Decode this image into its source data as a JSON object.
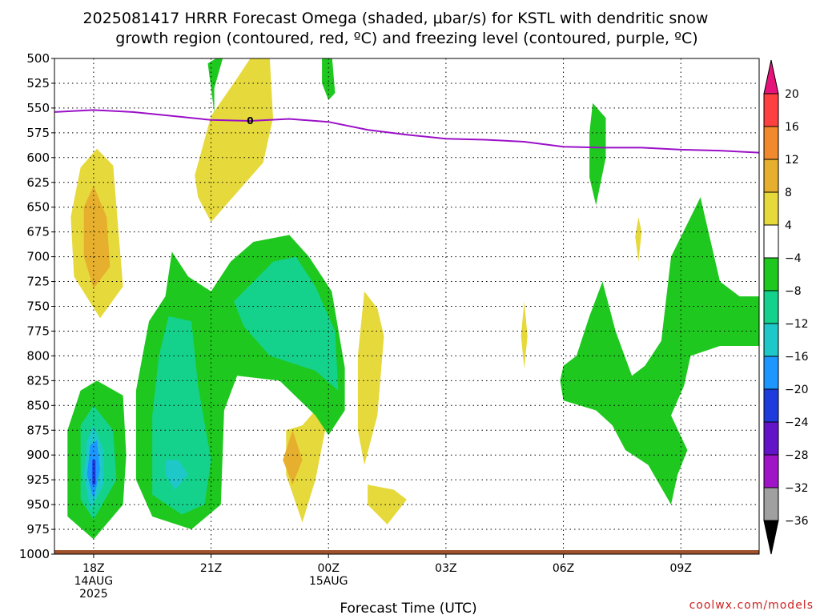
{
  "title_line1": "2025081417 HRRR Forecast Omega (shaded, μbar/s) for KSTL with dendritic snow",
  "title_line2": "growth region (contoured, red, ºC) and freezing level (contoured, purple, ºC)",
  "watermark": "coolwx.com/models",
  "chart_data": {
    "type": "heatmap",
    "title": "2025081417 HRRR Forecast Omega (shaded, μbar/s) for KSTL with dendritic snow growth region (contoured, red, ºC) and freezing level (contoured, purple, ºC)",
    "xlabel": "Forecast Time (UTC)",
    "ylabel": "",
    "y_axis": {
      "inverted": true,
      "ylim": [
        1000,
        500
      ],
      "ticks": [
        500,
        525,
        550,
        575,
        600,
        625,
        650,
        675,
        700,
        725,
        750,
        775,
        800,
        825,
        850,
        875,
        900,
        925,
        950,
        975,
        1000
      ]
    },
    "x_axis": {
      "xlim": [
        "2025-08-14 17Z",
        "2025-08-15 11Z"
      ],
      "ticks": [
        {
          "t": "2025-08-14 18Z",
          "lines": [
            "18Z",
            "14AUG",
            "2025"
          ]
        },
        {
          "t": "2025-08-14 21Z",
          "lines": [
            "21Z"
          ]
        },
        {
          "t": "2025-08-15 00Z",
          "lines": [
            "00Z",
            "15AUG"
          ]
        },
        {
          "t": "2025-08-15 03Z",
          "lines": [
            "03Z"
          ]
        },
        {
          "t": "2025-08-15 06Z",
          "lines": [
            "06Z"
          ]
        },
        {
          "t": "2025-08-15 09Z",
          "lines": [
            "09Z"
          ]
        }
      ]
    },
    "grid": true,
    "colorbar": {
      "labels": [
        "20",
        "16",
        "12",
        "8",
        "4",
        "−4",
        "−8",
        "−12",
        "−16",
        "−20",
        "−24",
        "−28",
        "−32",
        "−36"
      ],
      "bands": [
        {
          "range": "16 to 20",
          "color": "#ff4040"
        },
        {
          "range": "12 to 16",
          "color": "#f08a2c"
        },
        {
          "range": "8 to 12",
          "color": "#e6b02e"
        },
        {
          "range": "4 to 8",
          "color": "#e6d93c"
        },
        {
          "range": "-4 to 4",
          "color": "#ffffff"
        },
        {
          "range": "-8 to -4",
          "color": "#1ec81e"
        },
        {
          "range": "-12 to -8",
          "color": "#14d28c"
        },
        {
          "range": "-16 to -12",
          "color": "#1ec8c8"
        },
        {
          "range": "-20 to -16",
          "color": "#1e96ff"
        },
        {
          "range": "-24 to -20",
          "color": "#1e3cdc"
        },
        {
          "range": "-28 to -24",
          "color": "#6414c8"
        },
        {
          "range": "-32 to -28",
          "color": "#a014c8"
        },
        {
          "range": "-36 to -32",
          "color": "#a0a0a0"
        }
      ],
      "top_cap_color": "#e6147a",
      "bottom_cap_color": "#000000"
    },
    "freezing_level": {
      "label": "0",
      "color": "#9b10c8",
      "points": [
        [
          "2025-08-14 17Z",
          554
        ],
        [
          "2025-08-14 18Z",
          552
        ],
        [
          "2025-08-14 19Z",
          554
        ],
        [
          "2025-08-14 20Z",
          558
        ],
        [
          "2025-08-14 21Z",
          562
        ],
        [
          "2025-08-14 22Z",
          563
        ],
        [
          "2025-08-14 23Z",
          561
        ],
        [
          "2025-08-15 00Z",
          564
        ],
        [
          "2025-08-15 01Z",
          572
        ],
        [
          "2025-08-15 02Z",
          577
        ],
        [
          "2025-08-15 03Z",
          581
        ],
        [
          "2025-08-15 04Z",
          582
        ],
        [
          "2025-08-15 05Z",
          584
        ],
        [
          "2025-08-15 06Z",
          589
        ],
        [
          "2025-08-15 07Z",
          590
        ],
        [
          "2025-08-15 08Z",
          590
        ],
        [
          "2025-08-15 09Z",
          592
        ],
        [
          "2025-08-15 10Z",
          593
        ],
        [
          "2025-08-15 11Z",
          595
        ]
      ]
    },
    "terrain_color": "#a0522d",
    "regions": [
      {
        "band": "4 to 8",
        "points": [
          [
            "2025-08-14 17:40Z",
            610
          ],
          [
            "2025-08-14 18:05Z",
            591
          ],
          [
            "2025-08-14 18:30Z",
            608
          ],
          [
            "2025-08-14 18:40Z",
            690
          ],
          [
            "2025-08-14 18:45Z",
            730
          ],
          [
            "2025-08-14 18:10Z",
            762
          ],
          [
            "2025-08-14 17:30Z",
            720
          ],
          [
            "2025-08-14 17:25Z",
            660
          ]
        ]
      },
      {
        "band": "8 to 12",
        "points": [
          [
            "2025-08-14 17:45Z",
            650
          ],
          [
            "2025-08-14 18:00Z",
            628
          ],
          [
            "2025-08-14 18:20Z",
            660
          ],
          [
            "2025-08-14 18:25Z",
            710
          ],
          [
            "2025-08-14 18:00Z",
            732
          ],
          [
            "2025-08-14 17:45Z",
            700
          ]
        ]
      },
      {
        "band": "4 to 8",
        "points": [
          [
            "2025-08-14 20:35Z",
            618
          ],
          [
            "2025-08-14 21:00Z",
            558
          ],
          [
            "2025-08-14 21:40Z",
            520
          ],
          [
            "2025-08-14 22:05Z",
            495
          ],
          [
            "2025-08-14 22:30Z",
            500
          ],
          [
            "2025-08-14 22:35Z",
            560
          ],
          [
            "2025-08-14 22:20Z",
            605
          ],
          [
            "2025-08-14 21:00Z",
            665
          ],
          [
            "2025-08-14 20:40Z",
            640
          ]
        ]
      },
      {
        "band": "4 to 8",
        "points": [
          [
            "2025-08-14 23:20Z",
            870
          ],
          [
            "2025-08-14 23:40Z",
            855
          ],
          [
            "2025-08-14 23:55Z",
            875
          ],
          [
            "2025-08-14 23:40Z",
            925
          ],
          [
            "2025-08-14 23:20Z",
            968
          ],
          [
            "2025-08-14 22:55Z",
            920
          ],
          [
            "2025-08-14 22:55Z",
            875
          ]
        ]
      },
      {
        "band": "8 to 12",
        "points": [
          [
            "2025-08-14 23:05Z",
            875
          ],
          [
            "2025-08-14 23:20Z",
            905
          ],
          [
            "2025-08-14 23:05Z",
            930
          ],
          [
            "2025-08-14 22:50Z",
            905
          ]
        ]
      },
      {
        "band": "4 to 8",
        "points": [
          [
            "2025-08-15 00:55Z",
            735
          ],
          [
            "2025-08-15 01:15Z",
            752
          ],
          [
            "2025-08-15 01:25Z",
            780
          ],
          [
            "2025-08-15 01:15Z",
            860
          ],
          [
            "2025-08-15 00:55Z",
            910
          ],
          [
            "2025-08-15 00:45Z",
            875
          ],
          [
            "2025-08-15 00:45Z",
            800
          ]
        ]
      },
      {
        "band": "4 to 8",
        "points": [
          [
            "2025-08-15 01:00Z",
            930
          ],
          [
            "2025-08-15 01:40Z",
            935
          ],
          [
            "2025-08-15 02:00Z",
            945
          ],
          [
            "2025-08-15 01:30Z",
            970
          ],
          [
            "2025-08-15 01:00Z",
            950
          ]
        ]
      },
      {
        "band": "-8 to -4",
        "points": [
          [
            "2025-08-14 17:20Z",
            875
          ],
          [
            "2025-08-14 17:40Z",
            835
          ],
          [
            "2025-08-14 18:05Z",
            825
          ],
          [
            "2025-08-14 18:45Z",
            840
          ],
          [
            "2025-08-14 18:50Z",
            900
          ],
          [
            "2025-08-14 18:45Z",
            950
          ],
          [
            "2025-08-14 18:00Z",
            985
          ],
          [
            "2025-08-14 17:20Z",
            962
          ]
        ]
      },
      {
        "band": "-12 to -8",
        "points": [
          [
            "2025-08-14 17:40Z",
            870
          ],
          [
            "2025-08-14 18:00Z",
            850
          ],
          [
            "2025-08-14 18:30Z",
            875
          ],
          [
            "2025-08-14 18:35Z",
            925
          ],
          [
            "2025-08-14 18:00Z",
            965
          ],
          [
            "2025-08-14 17:40Z",
            945
          ]
        ]
      },
      {
        "band": "-16 to -12",
        "points": [
          [
            "2025-08-14 17:50Z",
            885
          ],
          [
            "2025-08-14 18:00Z",
            870
          ],
          [
            "2025-08-14 18:15Z",
            895
          ],
          [
            "2025-08-14 18:15Z",
            930
          ],
          [
            "2025-08-14 17:55Z",
            955
          ],
          [
            "2025-08-14 17:45Z",
            920
          ]
        ]
      },
      {
        "band": "-20 to -16",
        "points": [
          [
            "2025-08-14 17:55Z",
            890
          ],
          [
            "2025-08-14 18:05Z",
            885
          ],
          [
            "2025-08-14 18:10Z",
            915
          ],
          [
            "2025-08-14 18:00Z",
            945
          ],
          [
            "2025-08-14 17:50Z",
            920
          ]
        ]
      },
      {
        "band": "-24 to -20",
        "points": [
          [
            "2025-08-14 17:58Z",
            905
          ],
          [
            "2025-08-14 18:03Z",
            905
          ],
          [
            "2025-08-14 18:03Z",
            930
          ],
          [
            "2025-08-14 17:58Z",
            930
          ]
        ]
      },
      {
        "band": "-8 to -4",
        "points": [
          [
            "2025-08-14 19:05Z",
            835
          ],
          [
            "2025-08-14 19:25Z",
            765
          ],
          [
            "2025-08-14 19:50Z",
            740
          ],
          [
            "2025-08-14 20:00Z",
            695
          ],
          [
            "2025-08-14 20:25Z",
            720
          ],
          [
            "2025-08-14 21:00Z",
            735
          ],
          [
            "2025-08-14 21:30Z",
            705
          ],
          [
            "2025-08-14 22:05Z",
            685
          ],
          [
            "2025-08-14 23:00Z",
            678
          ],
          [
            "2025-08-14 23:30Z",
            700
          ],
          [
            "2025-08-15 00:05Z",
            735
          ],
          [
            "2025-08-15 00:25Z",
            812
          ],
          [
            "2025-08-15 00:25Z",
            855
          ],
          [
            "2025-08-15 00:00Z",
            880
          ],
          [
            "2025-08-14 23:40Z",
            860
          ],
          [
            "2025-08-14 22:45Z",
            825
          ],
          [
            "2025-08-14 21:40Z",
            820
          ],
          [
            "2025-08-14 21:20Z",
            855
          ],
          [
            "2025-08-14 21:15Z",
            950
          ],
          [
            "2025-08-14 20:30Z",
            975
          ],
          [
            "2025-08-14 19:30Z",
            962
          ],
          [
            "2025-08-14 19:05Z",
            925
          ]
        ]
      },
      {
        "band": "-12 to -8",
        "points": [
          [
            "2025-08-14 19:40Z",
            800
          ],
          [
            "2025-08-14 19:55Z",
            760
          ],
          [
            "2025-08-14 20:30Z",
            765
          ],
          [
            "2025-08-14 20:40Z",
            830
          ],
          [
            "2025-08-14 21:00Z",
            905
          ],
          [
            "2025-08-14 20:50Z",
            950
          ],
          [
            "2025-08-14 20:15Z",
            960
          ],
          [
            "2025-08-14 19:30Z",
            940
          ],
          [
            "2025-08-14 19:30Z",
            860
          ]
        ]
      },
      {
        "band": "-16 to -12",
        "points": [
          [
            "2025-08-14 19:50Z",
            905
          ],
          [
            "2025-08-14 20:10Z",
            905
          ],
          [
            "2025-08-14 20:25Z",
            920
          ],
          [
            "2025-08-14 20:05Z",
            935
          ],
          [
            "2025-08-14 19:50Z",
            920
          ]
        ]
      },
      {
        "band": "-12 to -8",
        "points": [
          [
            "2025-08-14 21:35Z",
            745
          ],
          [
            "2025-08-14 22:05Z",
            725
          ],
          [
            "2025-08-14 22:35Z",
            705
          ],
          [
            "2025-08-14 23:10Z",
            700
          ],
          [
            "2025-08-14 23:40Z",
            730
          ],
          [
            "2025-08-15 00:10Z",
            775
          ],
          [
            "2025-08-15 00:15Z",
            835
          ],
          [
            "2025-08-14 23:40Z",
            815
          ],
          [
            "2025-08-14 22:30Z",
            800
          ],
          [
            "2025-08-14 21:50Z",
            770
          ]
        ]
      },
      {
        "band": "-8 to -4",
        "points": [
          [
            "2025-08-14 20:55Z",
            505
          ],
          [
            "2025-08-14 21:20Z",
            495
          ],
          [
            "2025-08-14 21:05Z",
            530
          ],
          [
            "2025-08-14 21:05Z",
            555
          ]
        ]
      },
      {
        "band": "-8 to -4",
        "points": [
          [
            "2025-08-14 23:50Z",
            495
          ],
          [
            "2025-08-15 00:05Z",
            495
          ],
          [
            "2025-08-15 00:10Z",
            535
          ],
          [
            "2025-08-15 00:00Z",
            542
          ],
          [
            "2025-08-14 23:50Z",
            525
          ]
        ]
      },
      {
        "band": "-8 to -4",
        "points": [
          [
            "2025-08-15 06:45Z",
            545
          ],
          [
            "2025-08-15 07:05Z",
            560
          ],
          [
            "2025-08-15 07:05Z",
            600
          ],
          [
            "2025-08-15 06:50Z",
            648
          ],
          [
            "2025-08-15 06:40Z",
            620
          ],
          [
            "2025-08-15 06:40Z",
            575
          ]
        ]
      },
      {
        "band": "4 to 8",
        "points": [
          [
            "2025-08-15 05:00Z",
            745
          ],
          [
            "2025-08-15 05:05Z",
            780
          ],
          [
            "2025-08-15 05:00Z",
            813
          ],
          [
            "2025-08-15 04:55Z",
            780
          ]
        ]
      },
      {
        "band": "4 to 8",
        "points": [
          [
            "2025-08-15 07:55Z",
            660
          ],
          [
            "2025-08-15 08:00Z",
            675
          ],
          [
            "2025-08-15 07:55Z",
            705
          ],
          [
            "2025-08-15 07:50Z",
            680
          ]
        ]
      },
      {
        "band": "-8 to -4",
        "points": [
          [
            "2025-08-15 06:00Z",
            810
          ],
          [
            "2025-08-15 06:20Z",
            800
          ],
          [
            "2025-08-15 06:40Z",
            760
          ],
          [
            "2025-08-15 07:00Z",
            725
          ],
          [
            "2025-08-15 07:20Z",
            775
          ],
          [
            "2025-08-15 07:45Z",
            820
          ],
          [
            "2025-08-15 08:05Z",
            810
          ],
          [
            "2025-08-15 08:30Z",
            785
          ],
          [
            "2025-08-15 08:45Z",
            700
          ],
          [
            "2025-08-15 09:30Z",
            640
          ],
          [
            "2025-08-15 10:00Z",
            725
          ],
          [
            "2025-08-15 10:30Z",
            740
          ],
          [
            "2025-08-15 11:00Z",
            740
          ],
          [
            "2025-08-15 11:00Z",
            790
          ],
          [
            "2025-08-15 10:00Z",
            790
          ],
          [
            "2025-08-15 09:15Z",
            800
          ],
          [
            "2025-08-15 09:05Z",
            830
          ],
          [
            "2025-08-15 08:45Z",
            860
          ],
          [
            "2025-08-15 09:10Z",
            895
          ],
          [
            "2025-08-15 08:55Z",
            920
          ],
          [
            "2025-08-15 08:45Z",
            950
          ],
          [
            "2025-08-15 08:10Z",
            910
          ],
          [
            "2025-08-15 07:35Z",
            895
          ],
          [
            "2025-08-15 07:15Z",
            870
          ],
          [
            "2025-08-15 06:50Z",
            855
          ],
          [
            "2025-08-15 06:00Z",
            845
          ],
          [
            "2025-08-15 05:55Z",
            825
          ]
        ]
      }
    ]
  }
}
